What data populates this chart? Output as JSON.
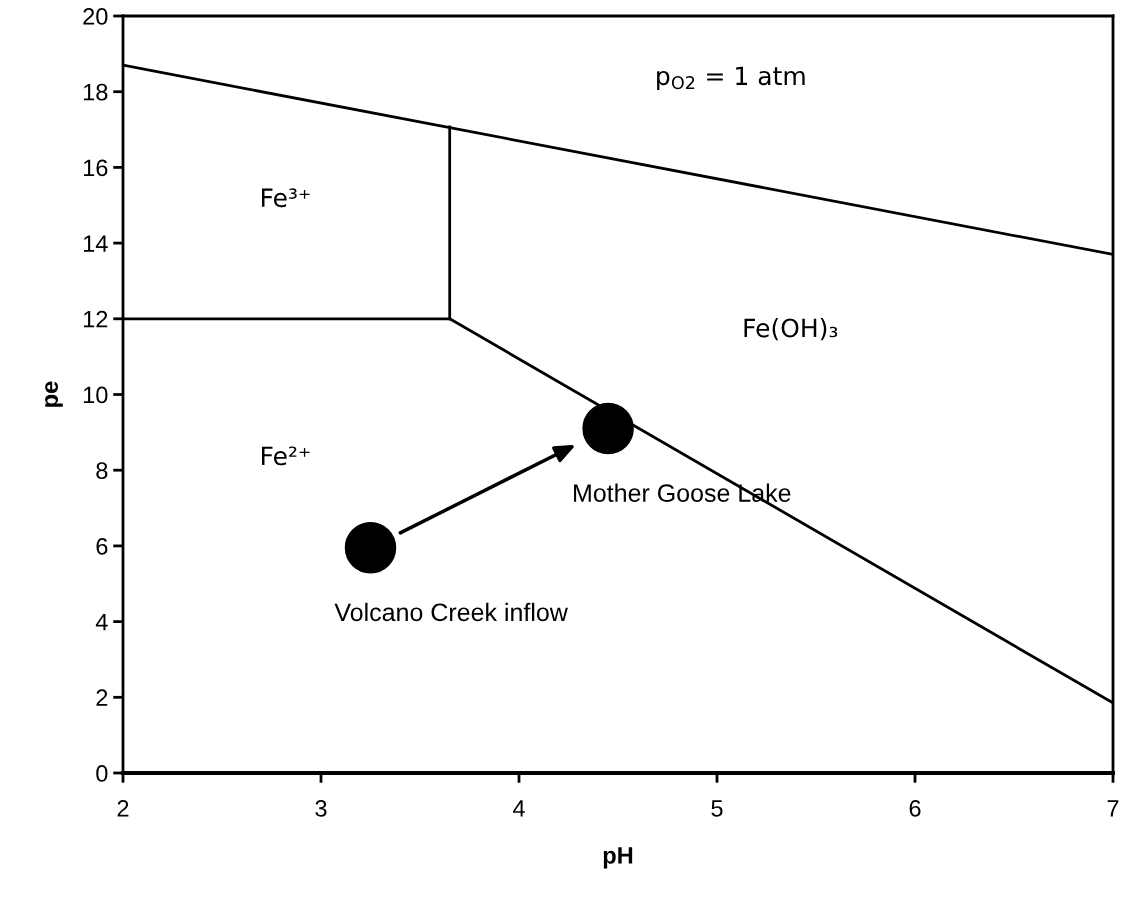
{
  "chart_data": {
    "type": "line",
    "xlabel": "pH",
    "ylabel": "pe",
    "xlim": [
      2,
      7
    ],
    "xticks": [
      2,
      3,
      4,
      5,
      6,
      7
    ],
    "ylim": [
      0,
      20
    ],
    "yticks": [
      0,
      2,
      4,
      6,
      8,
      10,
      12,
      14,
      16,
      18,
      20
    ],
    "grid": false,
    "legend": false,
    "series": [
      {
        "color": "#000000",
        "x": [
          2,
          7
        ],
        "values": [
          18.7,
          13.7
        ]
      },
      {
        "color": "#000000",
        "x": [
          3.65,
          3.65
        ],
        "values": [
          12,
          17.07
        ]
      },
      {
        "color": "#000000",
        "x": [
          2,
          3.65
        ],
        "values": [
          12,
          12
        ]
      },
      {
        "color": "#000000",
        "x": [
          3.65,
          7
        ],
        "values": [
          12,
          1.85
        ]
      },
      {
        "type": "scatter",
        "color": "#000000",
        "marker": "circle",
        "x": [
          3.25,
          4.45
        ],
        "values": [
          5.95,
          9.1
        ]
      }
    ],
    "annotations": [
      "p$_{O2}$ = 1 atm",
      "Fe³⁺",
      "Fe(OH)₃",
      "Fe²⁺",
      {
        "text": "Mother Goose Lake",
        "x": 4.45,
        "y": 9.1
      },
      {
        "text": "Volcano Creek inflow",
        "x": 3.25,
        "y": 5.95
      }
    ]
  }
}
